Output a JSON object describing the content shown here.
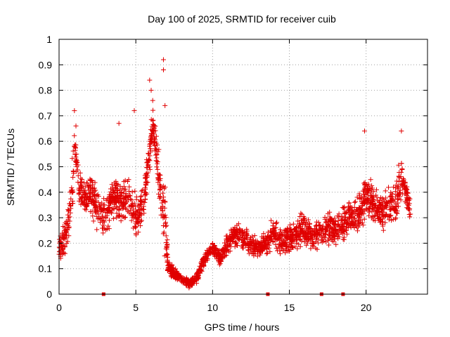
{
  "chart_data": {
    "type": "scatter",
    "title": "Day 100 of 2025, SRMTID for receiver cuib",
    "xlabel": "GPS time / hours",
    "ylabel": "SRMTID / TECUs",
    "xlim": [
      0,
      24
    ],
    "ylim": [
      0,
      1
    ],
    "xticks": [
      0,
      5,
      10,
      15,
      20
    ],
    "xtick_labels": [
      "0",
      "5",
      "10",
      "15",
      "20"
    ],
    "yticks": [
      0,
      0.1,
      0.2,
      0.3,
      0.4,
      0.5,
      0.6,
      0.7,
      0.8,
      0.9,
      1
    ],
    "ytick_labels": [
      "0",
      "0.1",
      "0.2",
      "0.3",
      "0.4",
      "0.5",
      "0.6",
      "0.7",
      "0.8",
      "0.9",
      "1"
    ],
    "grid": true,
    "marker": "plus",
    "color": "#e00000",
    "gap_markers_x": [
      2.9,
      13.6,
      17.1,
      18.5
    ],
    "profile": [
      [
        0.0,
        0.18,
        0.06
      ],
      [
        0.3,
        0.2,
        0.08
      ],
      [
        0.6,
        0.28,
        0.1
      ],
      [
        0.9,
        0.45,
        0.14
      ],
      [
        1.0,
        0.6,
        0.1
      ],
      [
        1.3,
        0.42,
        0.1
      ],
      [
        1.7,
        0.38,
        0.08
      ],
      [
        2.1,
        0.4,
        0.1
      ],
      [
        2.5,
        0.33,
        0.1
      ],
      [
        3.0,
        0.3,
        0.1
      ],
      [
        3.5,
        0.38,
        0.1
      ],
      [
        4.0,
        0.35,
        0.12
      ],
      [
        4.5,
        0.38,
        0.12
      ],
      [
        5.0,
        0.3,
        0.1
      ],
      [
        5.5,
        0.35,
        0.1
      ],
      [
        5.8,
        0.5,
        0.1
      ],
      [
        6.1,
        0.68,
        0.1
      ],
      [
        6.4,
        0.52,
        0.1
      ],
      [
        6.7,
        0.35,
        0.15
      ],
      [
        6.9,
        0.3,
        0.2
      ],
      [
        7.1,
        0.1,
        0.05
      ],
      [
        7.5,
        0.08,
        0.03
      ],
      [
        8.0,
        0.06,
        0.02
      ],
      [
        8.5,
        0.04,
        0.02
      ],
      [
        9.0,
        0.07,
        0.03
      ],
      [
        9.5,
        0.14,
        0.03
      ],
      [
        10.0,
        0.18,
        0.03
      ],
      [
        10.5,
        0.14,
        0.04
      ],
      [
        11.0,
        0.2,
        0.06
      ],
      [
        11.5,
        0.24,
        0.06
      ],
      [
        12.0,
        0.22,
        0.06
      ],
      [
        12.5,
        0.2,
        0.06
      ],
      [
        13.0,
        0.18,
        0.05
      ],
      [
        13.5,
        0.2,
        0.06
      ],
      [
        14.0,
        0.24,
        0.08
      ],
      [
        14.5,
        0.2,
        0.06
      ],
      [
        15.0,
        0.22,
        0.08
      ],
      [
        15.5,
        0.24,
        0.08
      ],
      [
        16.0,
        0.26,
        0.08
      ],
      [
        16.5,
        0.22,
        0.06
      ],
      [
        17.0,
        0.24,
        0.08
      ],
      [
        17.5,
        0.26,
        0.08
      ],
      [
        18.0,
        0.25,
        0.08
      ],
      [
        18.5,
        0.28,
        0.08
      ],
      [
        19.0,
        0.3,
        0.08
      ],
      [
        19.5,
        0.3,
        0.1
      ],
      [
        20.0,
        0.4,
        0.12
      ],
      [
        20.5,
        0.36,
        0.1
      ],
      [
        21.0,
        0.32,
        0.1
      ],
      [
        21.5,
        0.34,
        0.1
      ],
      [
        22.0,
        0.36,
        0.12
      ],
      [
        22.3,
        0.48,
        0.1
      ],
      [
        22.6,
        0.4,
        0.06
      ],
      [
        22.9,
        0.32,
        0.05
      ]
    ],
    "highlights": [
      [
        1.0,
        0.72
      ],
      [
        1.1,
        0.66
      ],
      [
        5.9,
        0.84
      ],
      [
        6.0,
        0.8
      ],
      [
        6.1,
        0.76
      ],
      [
        6.8,
        0.92
      ],
      [
        6.8,
        0.88
      ],
      [
        6.9,
        0.74
      ],
      [
        4.9,
        0.72
      ],
      [
        3.9,
        0.67
      ],
      [
        22.3,
        0.64
      ],
      [
        19.9,
        0.64
      ]
    ]
  }
}
